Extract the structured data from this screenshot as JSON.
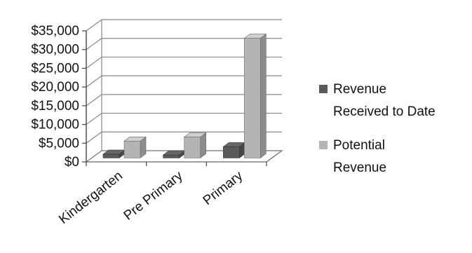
{
  "chart_data": {
    "type": "bar",
    "three_d": true,
    "categories": [
      "Kindergarten",
      "Pre Primary",
      "Primary"
    ],
    "series": [
      {
        "name": "Revenue Received to Date",
        "values": [
          1000,
          800,
          3000
        ],
        "color": "#5a5a5a"
      },
      {
        "name": "Potential Revenue",
        "values": [
          4500,
          5600,
          32000
        ],
        "color": "#b4b4b4"
      }
    ],
    "yticks": [
      "$0",
      "$5,000",
      "$10,000",
      "$15,000",
      "$20,000",
      "$25,000",
      "$30,000",
      "$35,000"
    ],
    "ylim": [
      0,
      35000
    ],
    "grid": true,
    "legend_position": "right",
    "legend_lines": [
      [
        "Revenue",
        "Received to Date"
      ],
      [
        "Potential",
        "Revenue"
      ]
    ]
  }
}
